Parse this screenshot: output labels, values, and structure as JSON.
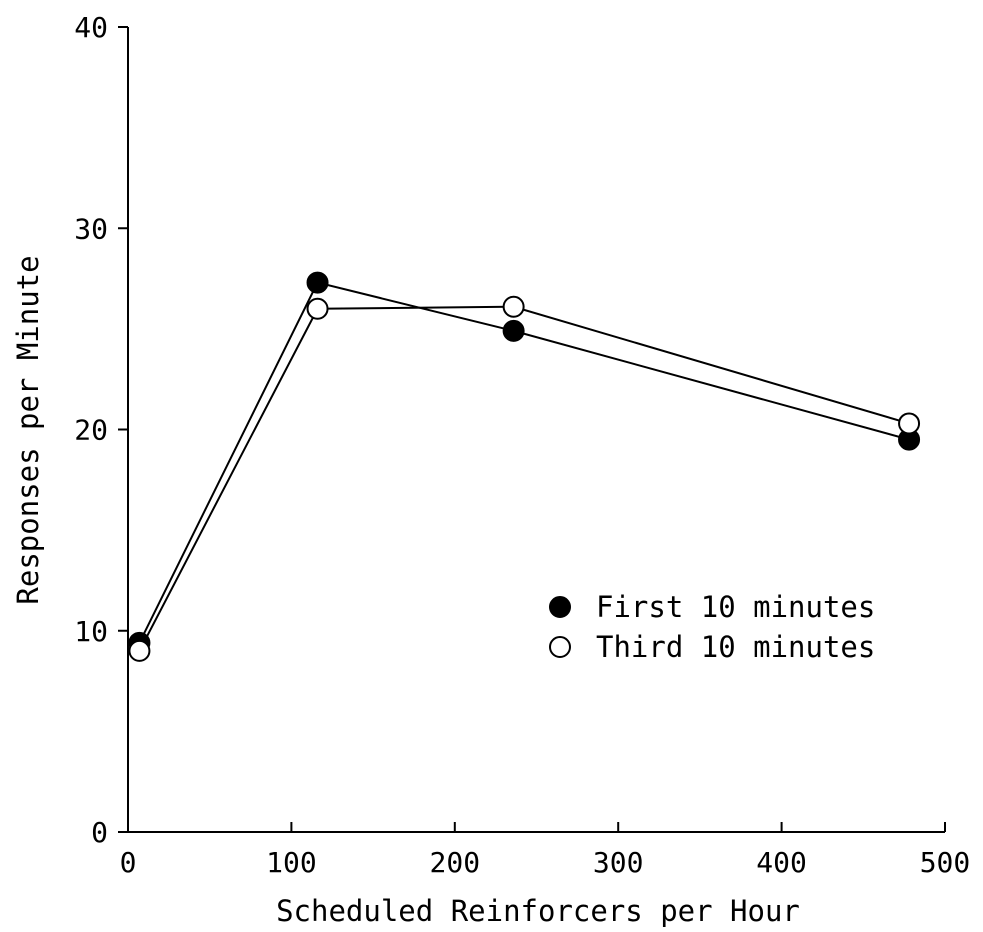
{
  "chart_data": {
    "type": "line",
    "title": "",
    "xlabel": "Scheduled Reinforcers per Hour",
    "ylabel": "Responses per Minute",
    "xlim": [
      0,
      500
    ],
    "ylim": [
      0,
      40
    ],
    "xticks": [
      0,
      100,
      200,
      300,
      400,
      500
    ],
    "yticks": [
      0,
      10,
      20,
      30,
      40
    ],
    "xtick_labels": [
      "0",
      "100",
      "200",
      "300",
      "400",
      "500"
    ],
    "ytick_labels": [
      "0",
      "10",
      "20",
      "30",
      "40"
    ],
    "grid": false,
    "legend_position": "center-right",
    "series": [
      {
        "name": "First 10 minutes",
        "marker": "filled-circle",
        "color": "#000000",
        "x": [
          7,
          116,
          236,
          478
        ],
        "y": [
          9.4,
          27.3,
          24.9,
          19.5
        ]
      },
      {
        "name": "Third 10 minutes",
        "marker": "open-circle",
        "color": "#000000",
        "x": [
          7,
          116,
          236,
          478
        ],
        "y": [
          9.0,
          26.0,
          26.1,
          20.3
        ]
      }
    ]
  }
}
